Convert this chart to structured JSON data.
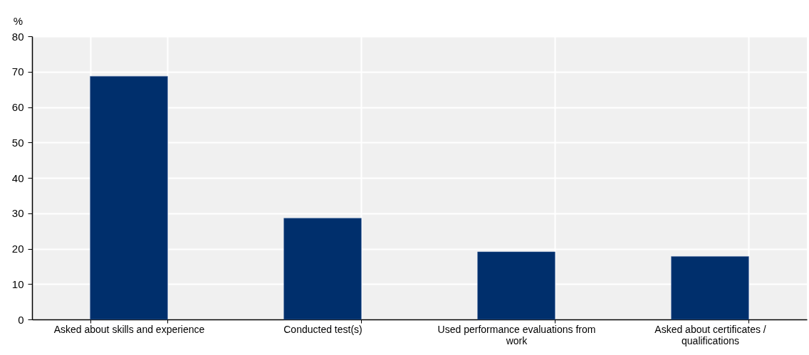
{
  "chart_data": {
    "type": "bar",
    "ylabel": "%",
    "categories": [
      "Asked about skills and experience",
      "Conducted test(s)",
      "Used performance evaluations from work",
      "Asked about certificates / qualifications"
    ],
    "values": [
      68.7,
      28.6,
      19.1,
      17.8
    ],
    "color": "#002f6c",
    "ylim": [
      0,
      80
    ],
    "yticks": [
      0,
      10,
      20,
      30,
      40,
      50,
      60,
      70,
      80
    ],
    "grid": true
  }
}
